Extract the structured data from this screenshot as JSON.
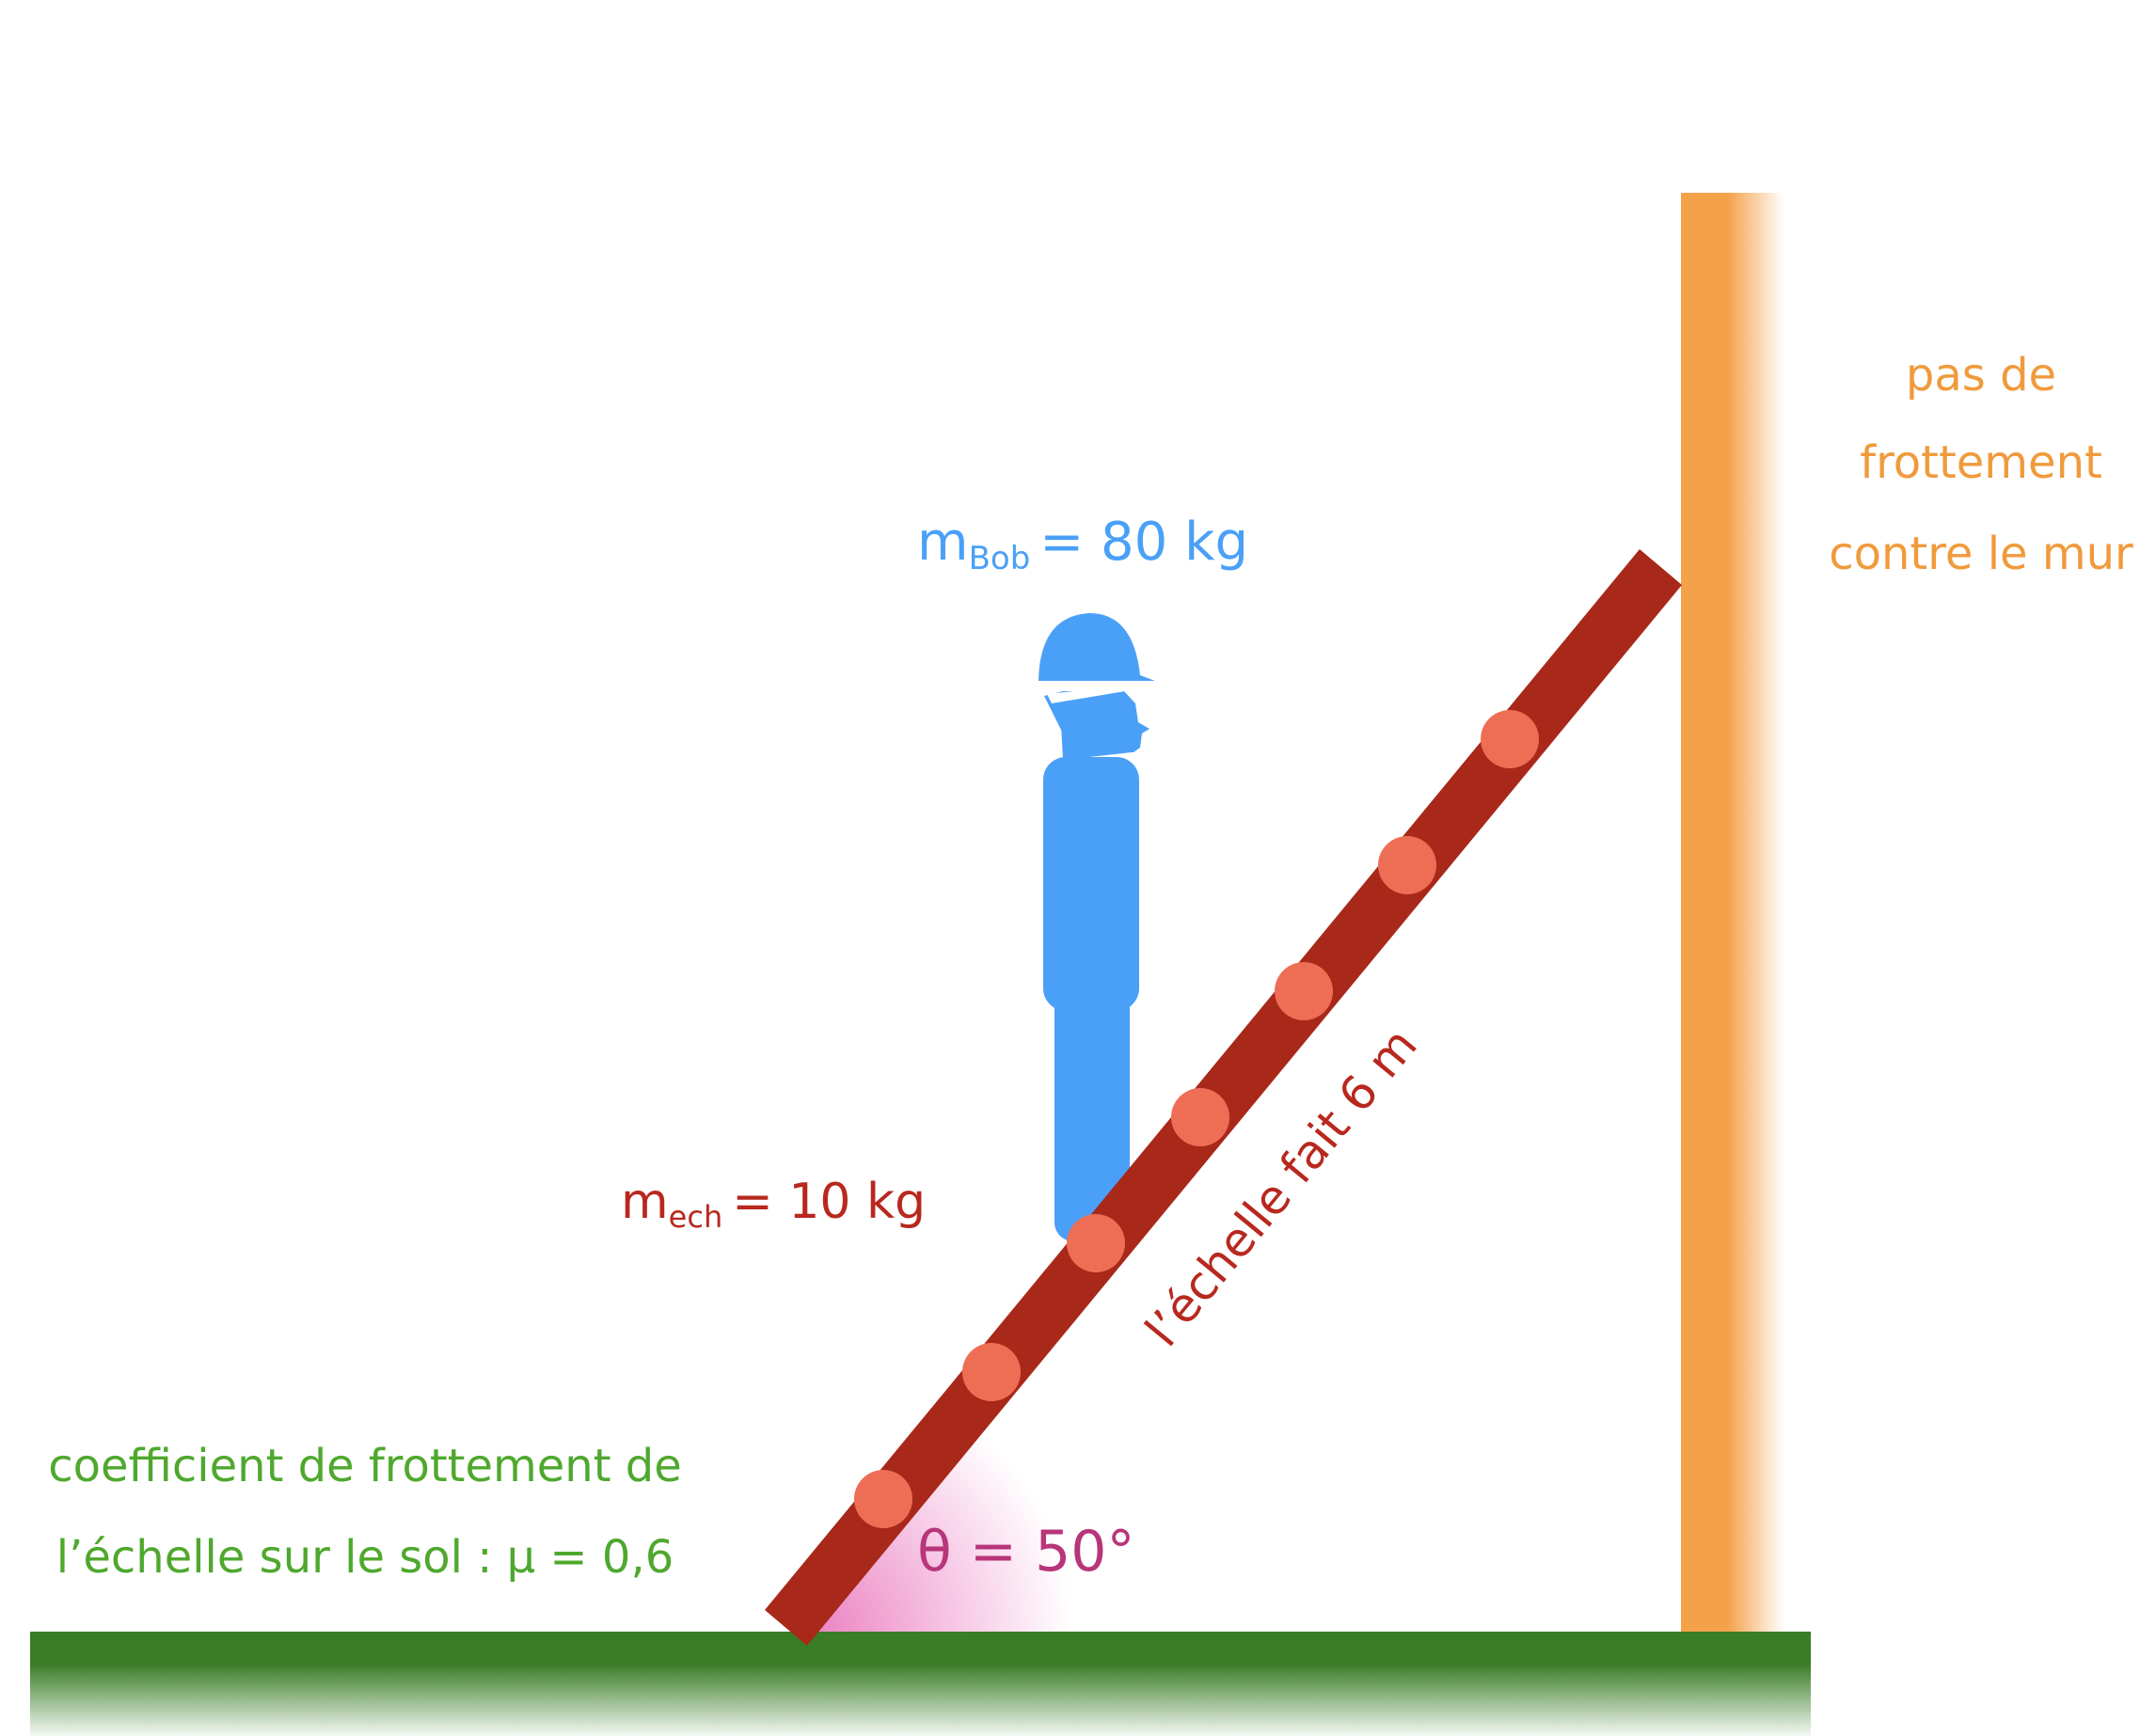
{
  "labels": {
    "mass_bob_main": "m",
    "mass_bob_sub": "Bob",
    "mass_bob_value": "= 80 kg",
    "mass_ladder_main": "m",
    "mass_ladder_sub": "ech",
    "mass_ladder_value": "= 10 kg",
    "ladder_length": "l’échelle fait 6 m",
    "angle": "θ = 50°",
    "wall_line1": "pas de",
    "wall_line2": "frottement",
    "wall_line3": "contre le mur",
    "ground_line1": "coefficient de frottement de",
    "ground_line2": "l’échelle sur le sol : μ = 0,6"
  },
  "colors": {
    "bob": "#4aa0f7",
    "ladder": "#a8281a",
    "rung": "#ee6e55",
    "wall": "#f4a24a",
    "ground": "#3a7d27",
    "angle": "#b8357a",
    "friction_text": "#4fa82e",
    "wall_text": "#f09a3c"
  }
}
